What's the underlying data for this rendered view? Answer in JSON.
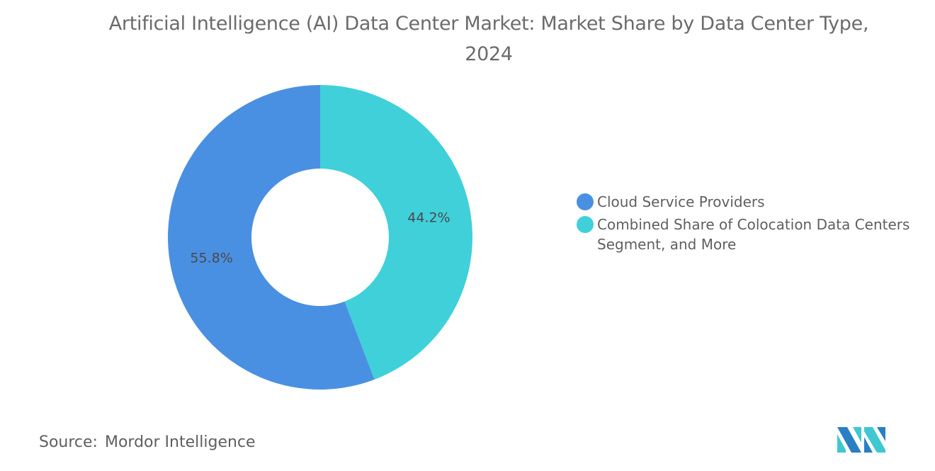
{
  "chart_data": {
    "type": "pie",
    "variant": "donut",
    "title": "Artificial Intelligence (AI) Data Center Market: Market Share by Data Center Type, 2024",
    "categories": [
      "Cloud Service Providers",
      "Combined Share of Colocation Data Centers Segment, and More"
    ],
    "values": [
      55.8,
      44.2
    ],
    "labels": [
      "55.8%",
      "44.2%"
    ],
    "colors": [
      "#4a90e2",
      "#40d0da"
    ],
    "legend_position": "right"
  },
  "source": {
    "label": "Source:",
    "value": "Mordor Intelligence"
  },
  "logo": {
    "name": "mordor-intelligence-logo",
    "colors": [
      "#2a7fc4",
      "#40c8d0"
    ]
  }
}
